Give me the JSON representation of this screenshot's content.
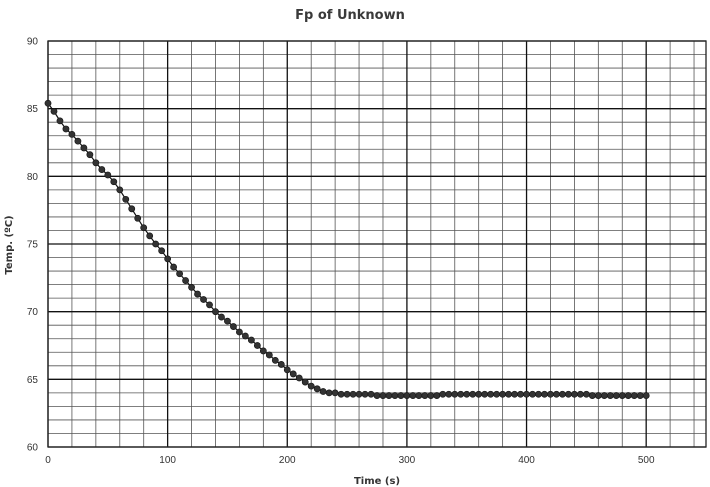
{
  "chart_data": {
    "type": "scatter",
    "title": "Fp of Unknown",
    "xlabel": "Time (s)",
    "ylabel": "Temp. (ºC)",
    "xlim": [
      0,
      550
    ],
    "ylim": [
      60,
      90
    ],
    "x_ticks": [
      "0",
      "100",
      "200",
      "300",
      "400",
      "500"
    ],
    "y_ticks": [
      "60",
      "65",
      "70",
      "75",
      "80",
      "85",
      "90"
    ],
    "grid": true,
    "legend": "none",
    "marker_color": "#333333",
    "line_color": "#111111",
    "series": [
      {
        "x": [
          0,
          5,
          10,
          15,
          20,
          25,
          30,
          35,
          40,
          45,
          50,
          55,
          60,
          65,
          70,
          75,
          80,
          85,
          90,
          95,
          100,
          105,
          110,
          115,
          120,
          125,
          130,
          135,
          140,
          145,
          150,
          155,
          160,
          165,
          170,
          175,
          180,
          185,
          190,
          195,
          200,
          205,
          210,
          215,
          220,
          225,
          230,
          235,
          240,
          245,
          250,
          255,
          260,
          265,
          270,
          275,
          280,
          285,
          290,
          295,
          300,
          305,
          310,
          315,
          320,
          325,
          330,
          335,
          340,
          345,
          350,
          355,
          360,
          365,
          370,
          375,
          380,
          385,
          390,
          395,
          400,
          405,
          410,
          415,
          420,
          425,
          430,
          435,
          440,
          445,
          450,
          455,
          460,
          465,
          470,
          475,
          480,
          485,
          490,
          495,
          500
        ],
        "y": [
          85.4,
          84.8,
          84.1,
          83.5,
          83.1,
          82.6,
          82.1,
          81.6,
          81.0,
          80.5,
          80.1,
          79.6,
          79.0,
          78.3,
          77.6,
          76.9,
          76.2,
          75.6,
          75.0,
          74.5,
          73.9,
          73.3,
          72.8,
          72.3,
          71.8,
          71.3,
          70.9,
          70.5,
          70.0,
          69.6,
          69.3,
          68.9,
          68.5,
          68.2,
          67.9,
          67.5,
          67.1,
          66.8,
          66.4,
          66.1,
          65.7,
          65.4,
          65.1,
          64.8,
          64.5,
          64.3,
          64.1,
          64.0,
          64.0,
          63.9,
          63.9,
          63.9,
          63.9,
          63.9,
          63.9,
          63.8,
          63.8,
          63.8,
          63.8,
          63.8,
          63.8,
          63.8,
          63.8,
          63.8,
          63.8,
          63.8,
          63.9,
          63.9,
          63.9,
          63.9,
          63.9,
          63.9,
          63.9,
          63.9,
          63.9,
          63.9,
          63.9,
          63.9,
          63.9,
          63.9,
          63.9,
          63.9,
          63.9,
          63.9,
          63.9,
          63.9,
          63.9,
          63.9,
          63.9,
          63.9,
          63.9,
          63.8,
          63.8,
          63.8,
          63.8,
          63.8,
          63.8,
          63.8,
          63.8,
          63.8,
          63.8
        ]
      }
    ]
  }
}
